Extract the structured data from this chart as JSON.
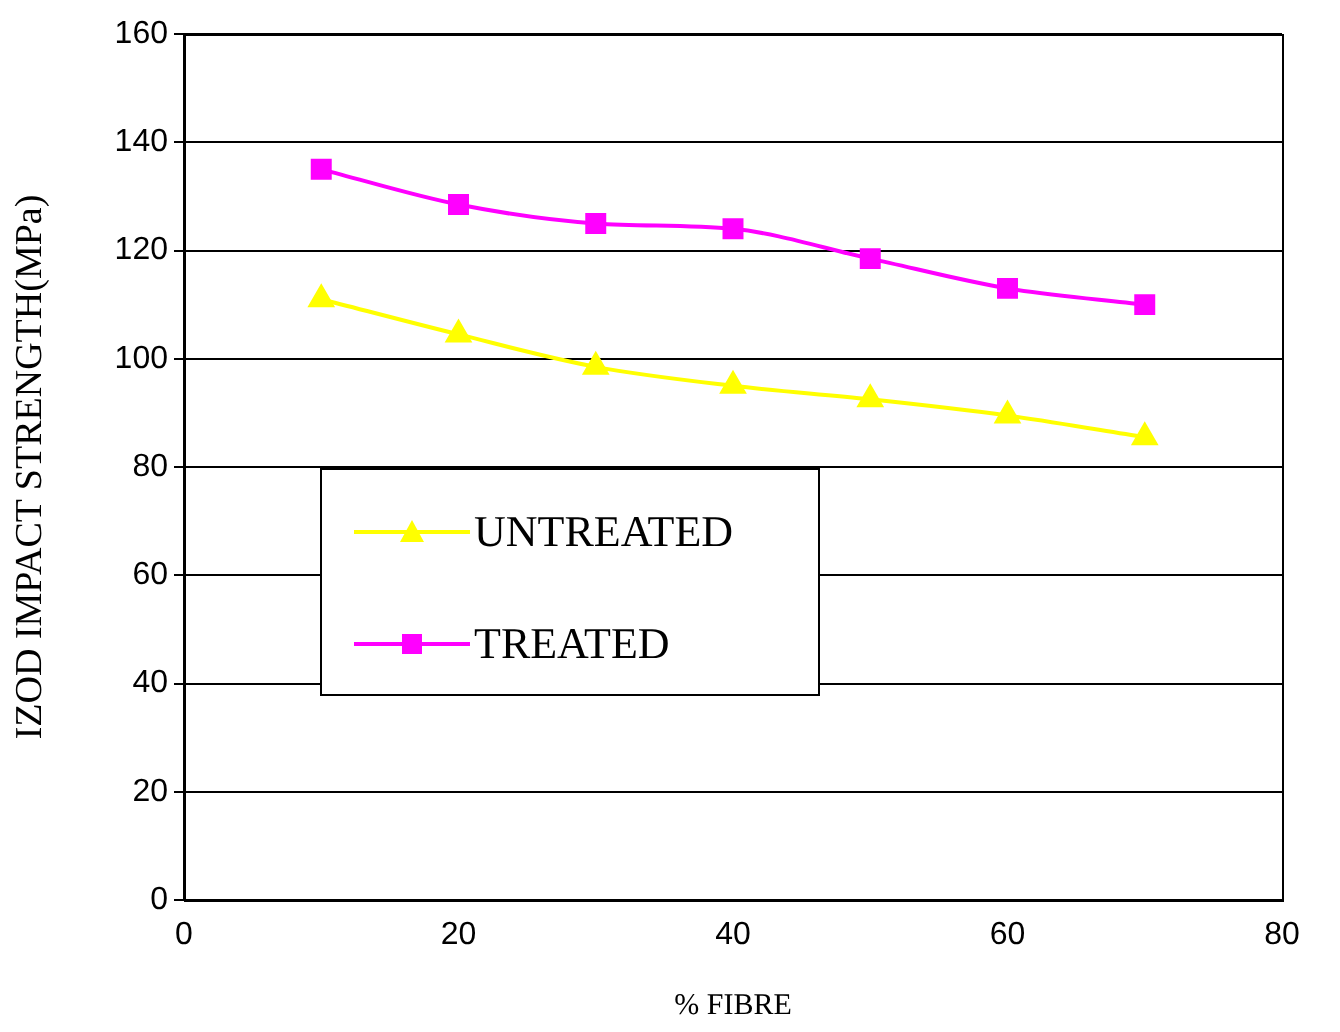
{
  "chart_data": {
    "type": "line",
    "xlabel": "% FIBRE",
    "ylabel": "IZOD IMPACT STRENGTH(MPa)",
    "x": [
      10,
      20,
      30,
      40,
      50,
      60,
      70
    ],
    "series": [
      {
        "name": "UNTREATED",
        "color": "#ffff00",
        "marker": "triangle",
        "values": [
          111,
          104.5,
          98.5,
          95,
          92.5,
          89.5,
          85.5
        ]
      },
      {
        "name": "TREATED",
        "color": "#ff00ff",
        "marker": "square",
        "values": [
          135,
          128.5,
          125,
          124,
          118.5,
          113,
          110
        ]
      }
    ],
    "xlim": [
      0,
      80
    ],
    "xticks": [
      0,
      20,
      40,
      60,
      80
    ],
    "ylim": [
      0,
      160
    ],
    "yticks": [
      0,
      20,
      40,
      60,
      80,
      100,
      120,
      140,
      160
    ],
    "grid": "y",
    "legend": "left"
  }
}
